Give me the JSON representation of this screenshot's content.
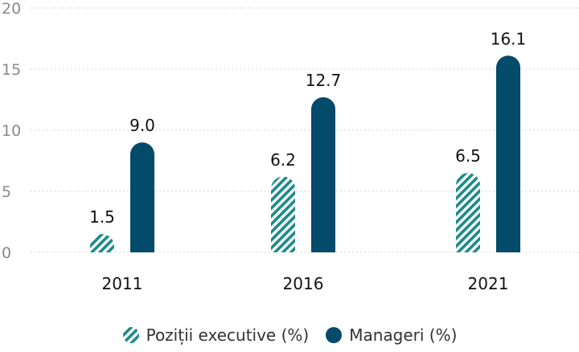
{
  "chart_data": {
    "type": "bar",
    "categories": [
      "2011",
      "2016",
      "2021"
    ],
    "series": [
      {
        "name": "Poziții executive (%)",
        "values": [
          1.5,
          6.2,
          6.5
        ],
        "labels": [
          "1.5",
          "6.2",
          "6.5"
        ],
        "color": "#1b8a8a",
        "pattern": "hatched"
      },
      {
        "name": "Manageri (%)",
        "values": [
          9.0,
          12.7,
          16.1
        ],
        "labels": [
          "9.0",
          "12.7",
          "16.1"
        ],
        "color": "#044a6a",
        "pattern": "solid"
      }
    ],
    "ylim": [
      0,
      20
    ],
    "yticks": [
      "0",
      "5",
      "10",
      "15",
      "20"
    ],
    "ytick_values": [
      0,
      5,
      10,
      15,
      20
    ],
    "grid": true,
    "legend": "bottom",
    "title": "",
    "xlabel": "",
    "ylabel": ""
  }
}
